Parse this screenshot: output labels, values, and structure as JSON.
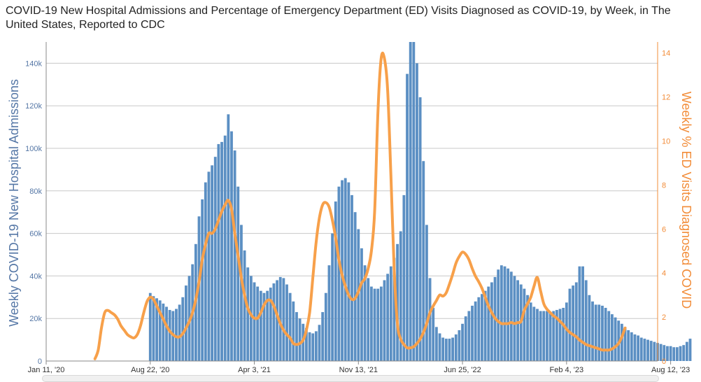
{
  "chart_data": {
    "type": "bar+line",
    "title": "COVID-19 New Hospital Admissions and Percentage of Emergency Department (ED) Visits Diagnosed as COVID-19, by Week, in The United States, Reported to CDC",
    "y_left_label": "Weekly COVID-19 New Hospital Admissions",
    "y_right_label": "Weekly % ED Visits Diagnosed COVID",
    "x_tick_labels": [
      "Jan 11, '20",
      "Aug 22, '20",
      "Apr 3, '21",
      "Nov 13, '21",
      "Jun 25, '22",
      "Feb 4, '23",
      "Aug 12, '23"
    ],
    "y_left_ticks": [
      "0",
      "20k",
      "40k",
      "60k",
      "80k",
      "100k",
      "120k",
      "140k"
    ],
    "y_right_ticks": [
      "0",
      "2",
      "4",
      "6",
      "8",
      "10",
      "12",
      "14"
    ],
    "y_left_range": [
      0,
      150000
    ],
    "y_right_range": [
      0,
      14.5
    ],
    "x_range_weeks": [
      0,
      188
    ],
    "grid": true,
    "colors": {
      "bars": "#5b8fc3",
      "line": "#f7a04a",
      "left_axis": "#5577a6",
      "right_axis": "#f28c38"
    },
    "series": [
      {
        "name": "Weekly COVID-19 New Hospital Admissions",
        "kind": "bar",
        "start_week": 32,
        "values": [
          32000,
          30500,
          29500,
          28500,
          27000,
          25500,
          24000,
          23500,
          24500,
          26500,
          30000,
          35500,
          40000,
          45500,
          55000,
          68000,
          76000,
          84000,
          89000,
          92000,
          96000,
          102000,
          103000,
          106000,
          116000,
          108000,
          99000,
          82000,
          64000,
          52000,
          44000,
          40000,
          37000,
          35000,
          33000,
          32000,
          33000,
          34500,
          36500,
          38000,
          39500,
          39000,
          36000,
          32000,
          28000,
          23000,
          20000,
          17500,
          15500,
          13500,
          13000,
          14000,
          17000,
          23000,
          32000,
          45000,
          60000,
          75000,
          82000,
          85000,
          86000,
          84000,
          78000,
          70000,
          62000,
          53000,
          45000,
          39000,
          35000,
          34000,
          34000,
          35000,
          38000,
          41000,
          44500,
          48500,
          55000,
          61000,
          78000,
          135000,
          150000,
          150000,
          140000,
          124000,
          94000,
          64000,
          39000,
          25000,
          16000,
          13000,
          11000,
          10500,
          10500,
          11000,
          12500,
          14500,
          17500,
          21000,
          23500,
          26000,
          28000,
          30000,
          31500,
          33000,
          35000,
          37000,
          39500,
          43000,
          45000,
          44500,
          43500,
          42000,
          40000,
          38000,
          36000,
          34000,
          31000,
          27500,
          25500,
          24500,
          23500,
          23500,
          23500,
          23000,
          23500,
          24000,
          24500,
          25000,
          27500,
          34000,
          35500,
          37000,
          44500,
          44500,
          38000,
          31000,
          28000,
          26500,
          26500,
          26000,
          25000,
          23500,
          22000,
          20500,
          19000,
          17500,
          16000,
          14500,
          13500,
          12500,
          12000,
          11000,
          10500,
          10000,
          9500,
          9000,
          8500,
          8000,
          7500,
          7000,
          7000,
          6500,
          6500,
          7000,
          7500,
          9000,
          10500
        ]
      },
      {
        "name": "Weekly % ED Visits Diagnosed COVID",
        "kind": "line",
        "points": [
          [
            15,
            0.1
          ],
          [
            16,
            0.5
          ],
          [
            17,
            1.5
          ],
          [
            18,
            2.2
          ],
          [
            19,
            2.3
          ],
          [
            20,
            2.2
          ],
          [
            21,
            2.1
          ],
          [
            22,
            1.9
          ],
          [
            23,
            1.6
          ],
          [
            24,
            1.4
          ],
          [
            25,
            1.2
          ],
          [
            26,
            1.1
          ],
          [
            27,
            1.05
          ],
          [
            28,
            1.2
          ],
          [
            29,
            1.6
          ],
          [
            30,
            2.2
          ],
          [
            31,
            2.7
          ],
          [
            32,
            2.9
          ],
          [
            33,
            2.8
          ],
          [
            34,
            2.5
          ],
          [
            35,
            2.2
          ],
          [
            36,
            1.9
          ],
          [
            37,
            1.6
          ],
          [
            38,
            1.35
          ],
          [
            39,
            1.2
          ],
          [
            40,
            1.1
          ],
          [
            41,
            1.1
          ],
          [
            42,
            1.25
          ],
          [
            43,
            1.5
          ],
          [
            44,
            1.8
          ],
          [
            45,
            2.2
          ],
          [
            46,
            2.8
          ],
          [
            47,
            3.6
          ],
          [
            48,
            4.6
          ],
          [
            49,
            5.3
          ],
          [
            50,
            5.8
          ],
          [
            51,
            5.8
          ],
          [
            52,
            6.0
          ],
          [
            53,
            6.4
          ],
          [
            54,
            6.8
          ],
          [
            55,
            7.1
          ],
          [
            56,
            7.3
          ],
          [
            57,
            6.9
          ],
          [
            58,
            5.8
          ],
          [
            59,
            4.8
          ],
          [
            60,
            3.8
          ],
          [
            61,
            3.0
          ],
          [
            62,
            2.4
          ],
          [
            63,
            2.1
          ],
          [
            64,
            1.95
          ],
          [
            65,
            1.95
          ],
          [
            66,
            2.2
          ],
          [
            67,
            2.55
          ],
          [
            68,
            2.75
          ],
          [
            69,
            2.75
          ],
          [
            70,
            2.5
          ],
          [
            71,
            2.1
          ],
          [
            72,
            1.7
          ],
          [
            73,
            1.4
          ],
          [
            74,
            1.2
          ],
          [
            75,
            1.05
          ],
          [
            76,
            0.8
          ],
          [
            77,
            0.75
          ],
          [
            78,
            0.8
          ],
          [
            79,
            0.95
          ],
          [
            80,
            1.4
          ],
          [
            81,
            2.2
          ],
          [
            82,
            3.8
          ],
          [
            83,
            5.4
          ],
          [
            84,
            6.5
          ],
          [
            85,
            7.1
          ],
          [
            86,
            7.2
          ],
          [
            87,
            7.0
          ],
          [
            88,
            6.4
          ],
          [
            89,
            5.6
          ],
          [
            90,
            4.6
          ],
          [
            91,
            3.9
          ],
          [
            92,
            3.4
          ],
          [
            93,
            3.0
          ],
          [
            94,
            2.8
          ],
          [
            95,
            2.85
          ],
          [
            96,
            3.15
          ],
          [
            97,
            3.55
          ],
          [
            98,
            3.75
          ],
          [
            99,
            4.2
          ],
          [
            100,
            5.0
          ],
          [
            101,
            6.8
          ],
          [
            102,
            11.3
          ],
          [
            103,
            13.75
          ],
          [
            104,
            13.75
          ],
          [
            105,
            12.3
          ],
          [
            106,
            8.4
          ],
          [
            107,
            4.2
          ],
          [
            108,
            1.7
          ],
          [
            109,
            1.0
          ],
          [
            110,
            0.75
          ],
          [
            111,
            0.6
          ],
          [
            112,
            0.6
          ],
          [
            113,
            0.65
          ],
          [
            114,
            0.8
          ],
          [
            115,
            1.0
          ],
          [
            116,
            1.3
          ],
          [
            117,
            1.7
          ],
          [
            118,
            2.2
          ],
          [
            119,
            2.5
          ],
          [
            120,
            2.75
          ],
          [
            121,
            3.0
          ],
          [
            122,
            2.95
          ],
          [
            123,
            3.1
          ],
          [
            124,
            3.5
          ],
          [
            125,
            3.95
          ],
          [
            126,
            4.45
          ],
          [
            127,
            4.75
          ],
          [
            128,
            4.95
          ],
          [
            129,
            4.85
          ],
          [
            130,
            4.6
          ],
          [
            131,
            4.2
          ],
          [
            132,
            3.85
          ],
          [
            133,
            3.6
          ],
          [
            134,
            3.3
          ],
          [
            135,
            2.9
          ],
          [
            136,
            2.5
          ],
          [
            137,
            2.2
          ],
          [
            138,
            1.95
          ],
          [
            139,
            1.8
          ],
          [
            140,
            1.7
          ],
          [
            141,
            1.7
          ],
          [
            142,
            1.7
          ],
          [
            143,
            1.75
          ],
          [
            144,
            1.7
          ],
          [
            145,
            1.75
          ],
          [
            146,
            1.8
          ],
          [
            147,
            2.3
          ],
          [
            148,
            2.6
          ],
          [
            149,
            2.9
          ],
          [
            150,
            3.4
          ],
          [
            151,
            3.8
          ],
          [
            152,
            3.2
          ],
          [
            153,
            2.6
          ],
          [
            154,
            2.35
          ],
          [
            155,
            2.2
          ],
          [
            156,
            2.05
          ],
          [
            157,
            1.95
          ],
          [
            158,
            1.8
          ],
          [
            159,
            1.65
          ],
          [
            160,
            1.45
          ],
          [
            161,
            1.3
          ],
          [
            162,
            1.2
          ],
          [
            163,
            1.1
          ],
          [
            164,
            0.95
          ],
          [
            165,
            0.85
          ],
          [
            166,
            0.75
          ],
          [
            167,
            0.7
          ],
          [
            168,
            0.65
          ],
          [
            169,
            0.6
          ],
          [
            170,
            0.55
          ],
          [
            171,
            0.5
          ],
          [
            172,
            0.5
          ],
          [
            173,
            0.5
          ],
          [
            174,
            0.55
          ],
          [
            175,
            0.65
          ],
          [
            176,
            0.8
          ],
          [
            177,
            1.1
          ],
          [
            178,
            1.5
          ]
        ]
      }
    ]
  }
}
